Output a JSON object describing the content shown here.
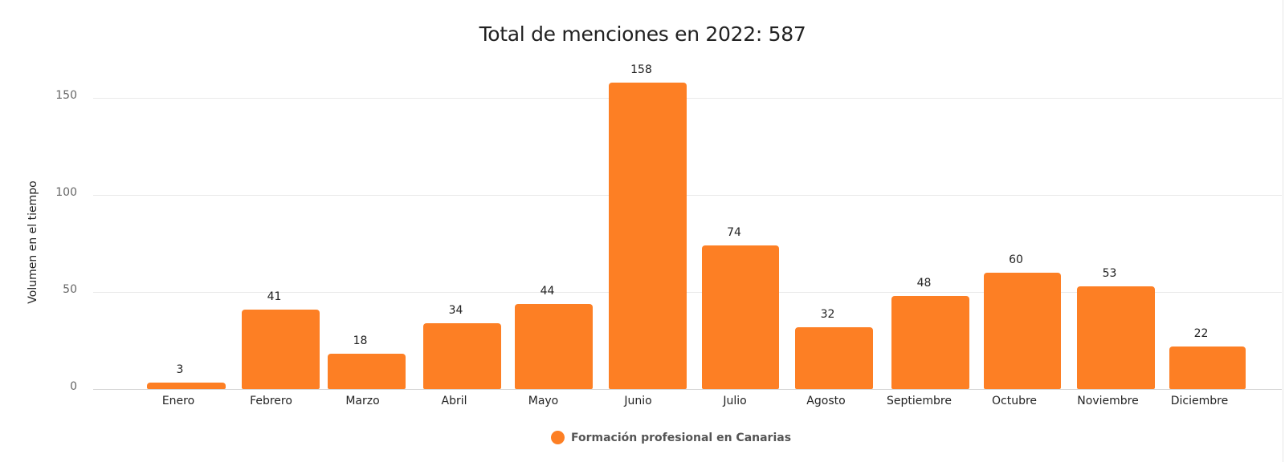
{
  "chart_data": {
    "type": "bar",
    "title": "Total de menciones en 2022: 587",
    "xlabel": "",
    "ylabel": "Volumen en el tiempo",
    "categories": [
      "Enero",
      "Febrero",
      "Marzo",
      "Abril",
      "Mayo",
      "Junio",
      "Julio",
      "Agosto",
      "Septiembre",
      "Octubre",
      "Noviembre",
      "Diciembre"
    ],
    "series": [
      {
        "name": "Formación profesional en Canarias",
        "color": "#fd7f24",
        "values": [
          3,
          41,
          18,
          34,
          44,
          158,
          74,
          32,
          48,
          60,
          53,
          22
        ]
      }
    ],
    "yticks": [
      0,
      50,
      100,
      150
    ],
    "ylim": [
      0,
      160
    ],
    "grid": true,
    "legend_position": "bottom",
    "data_labels": true
  },
  "title": "Total de menciones en 2022: 587",
  "yaxis": {
    "label": "Volumen en el tiempo",
    "ticks": [
      "0",
      "50",
      "100",
      "150"
    ]
  },
  "legend": {
    "label": "Formación profesional en Canarias",
    "color": "#fd7f24"
  },
  "bars": [
    {
      "month": "Enero",
      "value": "3"
    },
    {
      "month": "Febrero",
      "value": "41"
    },
    {
      "month": "Marzo",
      "value": "18"
    },
    {
      "month": "Abril",
      "value": "34"
    },
    {
      "month": "Mayo",
      "value": "44"
    },
    {
      "month": "Junio",
      "value": "158"
    },
    {
      "month": "Julio",
      "value": "74"
    },
    {
      "month": "Agosto",
      "value": "32"
    },
    {
      "month": "Septiembre",
      "value": "48"
    },
    {
      "month": "Octubre",
      "value": "60"
    },
    {
      "month": "Noviembre",
      "value": "53"
    },
    {
      "month": "Diciembre",
      "value": "22"
    }
  ]
}
